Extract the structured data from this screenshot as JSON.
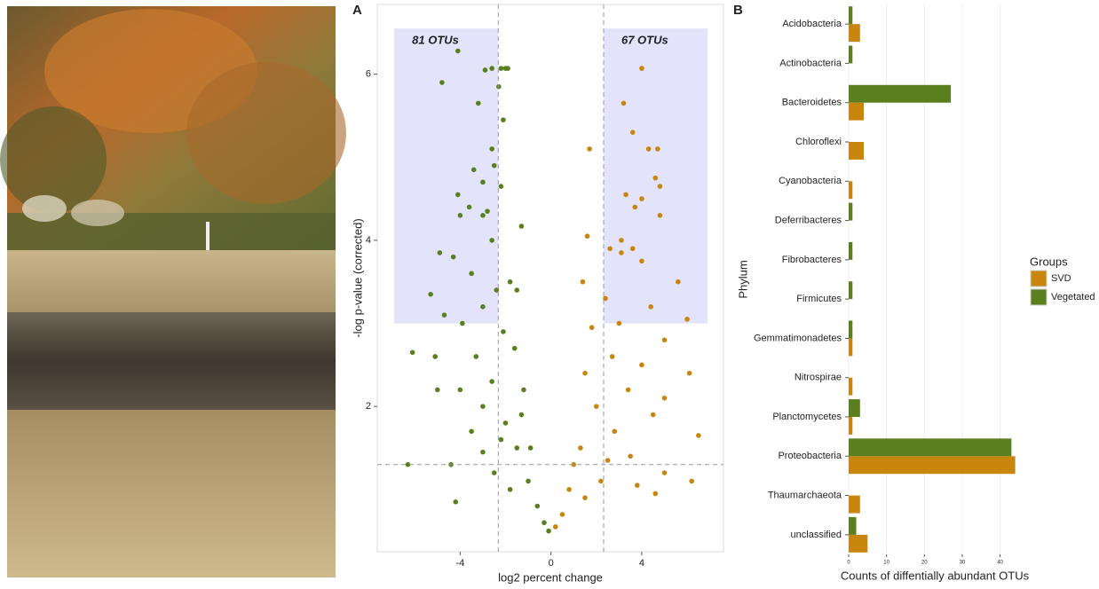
{
  "chart_data": [
    {
      "type": "scatter",
      "panel_label": "A",
      "x_label": "log2 percent change",
      "y_label": "-log p-value (corrected)",
      "xlim": [
        -7.65,
        7.6
      ],
      "ylim": [
        0.25,
        6.84
      ],
      "xticks": [
        -4,
        0,
        4
      ],
      "yticks": [
        2,
        4,
        6
      ],
      "vlines": [
        -2.32,
        2.32
      ],
      "hline": 1.3,
      "highlight_regions": [
        {
          "xlim": [
            -6.9,
            -2.32
          ],
          "ylim": [
            3,
            6.55
          ],
          "label": "81 OTUs"
        },
        {
          "xlim": [
            2.32,
            6.9
          ],
          "ylim": [
            3,
            6.55
          ],
          "label": "67 OTUs"
        }
      ],
      "series": [
        {
          "color": "#5a7f1f",
          "x": [
            -4.1,
            -2.6,
            -2.2,
            -2.0,
            -1.9,
            -2.9,
            -4.8,
            -2.3,
            -3.2,
            -2.1,
            -2.6,
            -3.4,
            -2.5,
            -3.0,
            -2.2,
            -4.1,
            -3.6,
            -2.8,
            -1.3,
            -3.0,
            -4.0,
            -2.6,
            -4.9,
            -4.3,
            -3.5,
            -1.8,
            -2.4,
            -5.3,
            -3.0,
            -1.5,
            -4.7,
            -3.9,
            -2.1,
            -3.3,
            -1.6,
            -5.1,
            -2.6,
            -4.0,
            -1.2,
            -3.0,
            -5.0,
            -2.0,
            -3.5,
            -1.5,
            -4.4,
            -2.5,
            -6.3,
            -1.0,
            -4.2,
            -0.6,
            -0.3,
            -0.1,
            -1.8,
            -3.0,
            -2.2,
            -0.9,
            -1.3,
            -6.1
          ],
          "values": [
            6.28,
            6.07,
            6.07,
            6.07,
            6.07,
            6.05,
            5.9,
            5.85,
            5.65,
            5.45,
            5.1,
            4.85,
            4.9,
            4.7,
            4.65,
            4.55,
            4.4,
            4.35,
            4.17,
            4.3,
            4.3,
            4.0,
            3.85,
            3.8,
            3.6,
            3.5,
            3.4,
            3.35,
            3.2,
            3.4,
            3.1,
            3.0,
            2.9,
            2.6,
            2.7,
            2.6,
            2.3,
            2.2,
            2.2,
            2.0,
            2.2,
            1.8,
            1.7,
            1.5,
            1.3,
            1.2,
            1.3,
            1.1,
            0.85,
            0.8,
            0.6,
            0.5,
            1.0,
            1.45,
            1.6,
            1.5,
            1.9,
            2.65
          ]
        },
        {
          "color": "#c8860e",
          "x": [
            4.0,
            3.2,
            4.3,
            4.7,
            1.7,
            3.6,
            4.6,
            4.8,
            3.3,
            4.0,
            3.7,
            4.8,
            1.6,
            3.1,
            3.6,
            3.1,
            2.6,
            4.0,
            5.6,
            1.4,
            2.4,
            4.4,
            6.0,
            3.0,
            1.8,
            5.0,
            2.7,
            4.0,
            6.1,
            1.5,
            3.4,
            5.0,
            2.0,
            4.5,
            2.8,
            6.5,
            1.3,
            3.5,
            5.0,
            2.2,
            6.2,
            0.8,
            1.5,
            4.6,
            0.5,
            0.2,
            1.0,
            2.5,
            3.8
          ],
          "values": [
            6.07,
            5.65,
            5.1,
            5.1,
            5.1,
            5.3,
            4.75,
            4.65,
            4.55,
            4.5,
            4.4,
            4.3,
            4.05,
            4.0,
            3.9,
            3.85,
            3.9,
            3.75,
            3.5,
            3.5,
            3.3,
            3.2,
            3.05,
            3.0,
            2.95,
            2.8,
            2.6,
            2.5,
            2.4,
            2.4,
            2.2,
            2.1,
            2.0,
            1.9,
            1.7,
            1.65,
            1.5,
            1.4,
            1.2,
            1.1,
            1.1,
            1.0,
            0.9,
            0.95,
            0.7,
            0.55,
            1.3,
            1.35,
            1.05
          ]
        }
      ]
    },
    {
      "type": "bar",
      "panel_label": "B",
      "x_label": "Counts of diffentially abundant OTUs",
      "y_label": "Phylum",
      "categories": [
        "Acidobacteria",
        "Actinobacteria",
        "Bacteroidetes",
        "Chloroflexi",
        "Cyanobacteria",
        "Deferribacteres",
        "Fibrobacteres",
        "Firmicutes",
        "Gemmatimonadetes",
        "Nitrospirae",
        "Planctomycetes",
        "Proteobacteria",
        "Thaumarchaeota",
        "unclassified"
      ],
      "xlim": [
        0,
        45.5
      ],
      "xticks": [
        0,
        10,
        20,
        30,
        40
      ],
      "grid": true,
      "legend_title": "Groups",
      "legend": "right",
      "series": [
        {
          "name": "SVD",
          "color": "#c8860e",
          "values": [
            3,
            null,
            4,
            4,
            1,
            null,
            null,
            null,
            1,
            1,
            1,
            44,
            3,
            5
          ]
        },
        {
          "name": "Vegetated",
          "color": "#5a7f1f",
          "values": [
            1,
            1,
            27,
            null,
            null,
            1,
            1,
            1,
            1,
            null,
            3,
            43,
            null,
            2
          ]
        }
      ]
    }
  ]
}
